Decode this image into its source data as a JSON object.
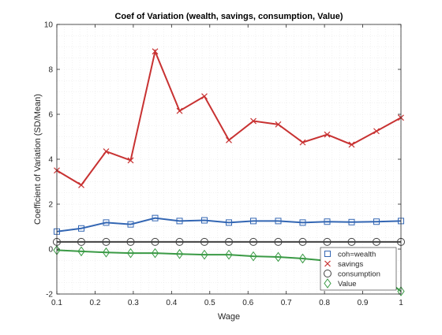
{
  "chart_data": {
    "type": "line",
    "title": "Coef of Variation (wealth, savings, consumption, Value)",
    "xlabel": "Wage",
    "ylabel": "Coefficient of Variation (SD/Mean)",
    "xlim": [
      0.1,
      1
    ],
    "ylim": [
      -2,
      10
    ],
    "xticks": [
      0.1,
      0.2,
      0.3,
      0.4,
      0.5,
      0.6,
      0.7,
      0.8,
      0.9,
      1
    ],
    "xtick_labels": [
      "0.1",
      "0.2",
      "0.3",
      "0.4",
      "0.5",
      "0.6",
      "0.7",
      "0.8",
      "0.9",
      "1"
    ],
    "yticks": [
      -2,
      0,
      2,
      4,
      6,
      8,
      10
    ],
    "ytick_labels": [
      "-2",
      "0",
      "2",
      "4",
      "6",
      "8",
      "10"
    ],
    "grid": "minor",
    "legend_position": "bottom-right",
    "x": [
      0.1,
      0.164,
      0.229,
      0.293,
      0.357,
      0.421,
      0.486,
      0.55,
      0.614,
      0.679,
      0.743,
      0.807,
      0.871,
      0.936,
      1.0
    ],
    "series": [
      {
        "name": "coh=wealth",
        "color": "#3366b3",
        "marker": "square",
        "values": [
          0.78,
          0.92,
          1.18,
          1.1,
          1.38,
          1.25,
          1.28,
          1.18,
          1.25,
          1.25,
          1.18,
          1.22,
          1.2,
          1.22,
          1.25
        ]
      },
      {
        "name": "savings",
        "color": "#c83232",
        "marker": "x",
        "values": [
          3.5,
          2.85,
          4.35,
          3.95,
          8.8,
          6.15,
          6.8,
          4.85,
          5.7,
          5.55,
          4.75,
          5.1,
          4.65,
          5.25,
          5.85
        ]
      },
      {
        "name": "consumption",
        "color": "#404040",
        "marker": "circle",
        "values": [
          0.32,
          0.32,
          0.32,
          0.32,
          0.32,
          0.32,
          0.32,
          0.32,
          0.32,
          0.32,
          0.32,
          0.32,
          0.32,
          0.32,
          0.32
        ]
      },
      {
        "name": "Value",
        "color": "#3a9a45",
        "marker": "diamond",
        "values": [
          -0.05,
          -0.1,
          -0.15,
          -0.18,
          -0.18,
          -0.22,
          -0.25,
          -0.25,
          -0.32,
          -0.35,
          -0.42,
          -0.52,
          -0.72,
          -1.05,
          -1.88
        ]
      }
    ]
  }
}
